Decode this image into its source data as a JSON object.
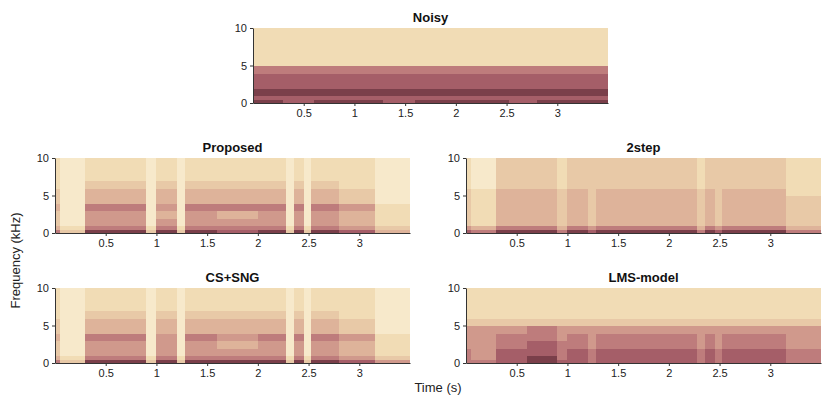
{
  "chart_data": [
    {
      "type": "heatmap",
      "title": "Noisy",
      "x_edges": [
        0,
        0.05,
        0.3,
        0.6,
        0.9,
        1.0,
        1.2,
        1.28,
        1.6,
        2.0,
        2.28,
        2.36,
        2.45,
        2.52,
        2.8,
        3.15,
        3.5
      ],
      "y_edges": [
        0,
        0.5,
        1,
        2,
        3,
        4,
        5,
        6,
        7,
        8,
        10
      ],
      "cells": [
        [
          8,
          8,
          7,
          8,
          8,
          8,
          8,
          7,
          8,
          8,
          8,
          8,
          8,
          7,
          8,
          8
        ],
        [
          7,
          7,
          7,
          7,
          7,
          7,
          7,
          7,
          7,
          7,
          7,
          7,
          7,
          7,
          7,
          7
        ],
        [
          8,
          8,
          8,
          8,
          8,
          8,
          8,
          8,
          8,
          8,
          8,
          8,
          8,
          8,
          8,
          8
        ],
        [
          7,
          7,
          7,
          7,
          7,
          7,
          7,
          7,
          7,
          7,
          7,
          7,
          7,
          7,
          7,
          7
        ],
        [
          7,
          7,
          7,
          7,
          7,
          7,
          7,
          7,
          7,
          7,
          7,
          7,
          7,
          7,
          7,
          7
        ],
        [
          6,
          6,
          6,
          6,
          6,
          6,
          6,
          6,
          6,
          6,
          6,
          6,
          6,
          6,
          6,
          6
        ],
        [
          2,
          2,
          2,
          2,
          2,
          2,
          2,
          2,
          2,
          2,
          2,
          2,
          2,
          2,
          2,
          2
        ],
        [
          2,
          2,
          2,
          2,
          2,
          2,
          2,
          2,
          2,
          2,
          2,
          2,
          2,
          2,
          2,
          2
        ],
        [
          2,
          2,
          2,
          2,
          2,
          2,
          2,
          2,
          2,
          2,
          2,
          2,
          2,
          2,
          2,
          2
        ],
        [
          2,
          2,
          2,
          2,
          2,
          2,
          2,
          2,
          2,
          2,
          2,
          2,
          2,
          2,
          2,
          2
        ]
      ],
      "clim": [
        0,
        9
      ],
      "xlim": [
        0,
        3.5
      ],
      "ylim": [
        0,
        10
      ],
      "xticks": [
        0.5,
        1,
        1.5,
        2,
        2.5,
        3
      ],
      "yticks": [
        0,
        5,
        10
      ]
    },
    {
      "type": "heatmap",
      "title": "Proposed",
      "x_edges": [
        0,
        0.05,
        0.3,
        0.6,
        0.9,
        1.0,
        1.2,
        1.28,
        1.6,
        2.0,
        2.28,
        2.36,
        2.45,
        2.52,
        2.8,
        3.15,
        3.5
      ],
      "y_edges": [
        0,
        0.5,
        1,
        2,
        3,
        4,
        5,
        6,
        7,
        8,
        10
      ],
      "cells": [
        [
          6,
          3,
          8,
          8,
          3,
          8,
          3,
          8,
          7,
          8,
          3,
          8,
          3,
          8,
          7,
          4
        ],
        [
          4,
          2,
          6,
          6,
          2,
          6,
          2,
          6,
          6,
          6,
          2,
          6,
          2,
          6,
          5,
          3
        ],
        [
          3,
          1,
          5,
          5,
          1,
          5,
          1,
          5,
          5,
          5,
          1,
          5,
          1,
          5,
          4,
          2
        ],
        [
          3,
          1,
          5,
          5,
          1,
          4,
          1,
          5,
          4,
          5,
          1,
          5,
          1,
          5,
          4,
          2
        ],
        [
          4,
          1,
          6,
          6,
          1,
          5,
          1,
          6,
          6,
          6,
          1,
          6,
          1,
          6,
          5,
          2
        ],
        [
          3,
          1,
          4,
          4,
          1,
          4,
          1,
          4,
          4,
          4,
          1,
          4,
          1,
          4,
          3,
          1
        ],
        [
          3,
          1,
          4,
          4,
          1,
          4,
          1,
          4,
          4,
          4,
          1,
          4,
          1,
          4,
          3,
          1
        ],
        [
          2,
          1,
          3,
          3,
          1,
          3,
          1,
          3,
          3,
          3,
          1,
          3,
          1,
          3,
          2,
          1
        ],
        [
          2,
          1,
          2,
          2,
          1,
          2,
          1,
          2,
          2,
          2,
          1,
          2,
          1,
          2,
          2,
          1
        ],
        [
          2,
          1,
          2,
          2,
          1,
          2,
          1,
          2,
          2,
          2,
          1,
          2,
          1,
          2,
          2,
          1
        ]
      ],
      "clim": [
        0,
        9
      ],
      "xlim": [
        0,
        3.5
      ],
      "ylim": [
        0,
        10
      ],
      "xticks": [
        0.5,
        1,
        1.5,
        2,
        2.5,
        3
      ],
      "yticks": [
        0,
        5,
        10
      ]
    },
    {
      "type": "heatmap",
      "title": "2step",
      "x_edges": [
        0,
        0.05,
        0.3,
        0.6,
        0.9,
        1.0,
        1.2,
        1.28,
        1.6,
        2.0,
        2.28,
        2.36,
        2.45,
        2.52,
        2.8,
        3.15,
        3.5
      ],
      "y_edges": [
        0,
        0.5,
        1,
        2,
        3,
        4,
        5,
        6,
        7,
        8,
        10
      ],
      "cells": [
        [
          7,
          6,
          8,
          8,
          6,
          8,
          7,
          8,
          8,
          8,
          6,
          8,
          7,
          8,
          8,
          6
        ],
        [
          5,
          4,
          6,
          6,
          4,
          6,
          5,
          6,
          6,
          6,
          4,
          6,
          5,
          6,
          6,
          4
        ],
        [
          3,
          2,
          4,
          4,
          3,
          4,
          3,
          4,
          4,
          4,
          3,
          4,
          3,
          4,
          4,
          3
        ],
        [
          3,
          2,
          4,
          4,
          3,
          4,
          3,
          4,
          4,
          4,
          3,
          4,
          3,
          4,
          4,
          3
        ],
        [
          3,
          2,
          4,
          4,
          3,
          4,
          3,
          4,
          4,
          4,
          3,
          4,
          3,
          4,
          4,
          3
        ],
        [
          3,
          2,
          4,
          4,
          3,
          4,
          3,
          4,
          4,
          4,
          3,
          4,
          3,
          4,
          4,
          3
        ],
        [
          3,
          2,
          4,
          4,
          3,
          4,
          3,
          4,
          4,
          4,
          3,
          4,
          3,
          4,
          4,
          2
        ],
        [
          2,
          1,
          3,
          3,
          2,
          3,
          3,
          3,
          3,
          3,
          2,
          3,
          3,
          3,
          3,
          2
        ],
        [
          2,
          1,
          3,
          3,
          2,
          3,
          3,
          3,
          3,
          3,
          2,
          3,
          3,
          3,
          3,
          2
        ],
        [
          2,
          1,
          3,
          3,
          2,
          3,
          3,
          3,
          3,
          3,
          2,
          3,
          3,
          3,
          3,
          2
        ]
      ],
      "clim": [
        0,
        9
      ],
      "xlim": [
        0,
        3.5
      ],
      "ylim": [
        0,
        10
      ],
      "xticks": [
        0.5,
        1,
        1.5,
        2,
        2.5,
        3
      ],
      "yticks": [
        0,
        5,
        10
      ]
    },
    {
      "type": "heatmap",
      "title": "CS+SNG",
      "x_edges": [
        0,
        0.05,
        0.3,
        0.6,
        0.9,
        1.0,
        1.2,
        1.28,
        1.6,
        2.0,
        2.28,
        2.36,
        2.45,
        2.52,
        2.8,
        3.15,
        3.5
      ],
      "y_edges": [
        0,
        0.5,
        1,
        2,
        3,
        4,
        5,
        6,
        7,
        8,
        10
      ],
      "cells": [
        [
          6,
          3,
          8,
          8,
          3,
          8,
          3,
          8,
          8,
          8,
          3,
          8,
          3,
          8,
          7,
          5
        ],
        [
          4,
          2,
          6,
          6,
          2,
          6,
          2,
          6,
          6,
          6,
          2,
          6,
          2,
          6,
          5,
          3
        ],
        [
          3,
          1,
          5,
          5,
          1,
          5,
          1,
          5,
          5,
          5,
          1,
          5,
          1,
          5,
          4,
          2
        ],
        [
          3,
          1,
          5,
          5,
          1,
          5,
          1,
          5,
          4,
          5,
          1,
          5,
          1,
          5,
          4,
          2
        ],
        [
          4,
          1,
          6,
          6,
          1,
          5,
          1,
          6,
          5,
          6,
          1,
          6,
          1,
          6,
          5,
          2
        ],
        [
          3,
          1,
          4,
          4,
          1,
          4,
          1,
          4,
          4,
          4,
          1,
          4,
          1,
          4,
          3,
          1
        ],
        [
          3,
          1,
          4,
          4,
          1,
          4,
          1,
          4,
          4,
          4,
          1,
          4,
          1,
          4,
          3,
          1
        ],
        [
          2,
          1,
          3,
          3,
          1,
          3,
          1,
          3,
          3,
          3,
          1,
          3,
          1,
          3,
          2,
          1
        ],
        [
          2,
          1,
          2,
          2,
          1,
          2,
          1,
          2,
          2,
          2,
          1,
          2,
          1,
          2,
          2,
          1
        ],
        [
          2,
          1,
          2,
          2,
          1,
          2,
          1,
          2,
          2,
          2,
          1,
          2,
          1,
          2,
          2,
          1
        ]
      ],
      "clim": [
        0,
        9
      ],
      "xlim": [
        0,
        3.5
      ],
      "ylim": [
        0,
        10
      ],
      "xticks": [
        0.5,
        1,
        1.5,
        2,
        2.5,
        3
      ],
      "yticks": [
        0,
        5,
        10
      ]
    },
    {
      "type": "heatmap",
      "title": "LMS-model",
      "x_edges": [
        0,
        0.05,
        0.3,
        0.6,
        0.9,
        1.0,
        1.2,
        1.28,
        1.6,
        2.0,
        2.28,
        2.36,
        2.45,
        2.52,
        2.8,
        3.15,
        3.5
      ],
      "y_edges": [
        0,
        0.5,
        1,
        2,
        3,
        4,
        5,
        6,
        7,
        8,
        10
      ],
      "cells": [
        [
          6,
          6,
          7,
          8,
          7,
          7,
          6,
          7,
          7,
          7,
          6,
          7,
          6,
          7,
          7,
          6
        ],
        [
          6,
          5,
          7,
          8,
          6,
          7,
          6,
          7,
          7,
          7,
          6,
          7,
          6,
          7,
          7,
          6
        ],
        [
          6,
          5,
          7,
          7,
          6,
          7,
          6,
          7,
          7,
          7,
          6,
          7,
          6,
          7,
          7,
          6
        ],
        [
          5,
          5,
          6,
          7,
          6,
          6,
          5,
          6,
          6,
          6,
          5,
          6,
          5,
          6,
          6,
          5
        ],
        [
          5,
          5,
          6,
          6,
          5,
          6,
          5,
          6,
          6,
          6,
          5,
          6,
          5,
          6,
          6,
          5
        ],
        [
          5,
          5,
          5,
          6,
          5,
          5,
          5,
          5,
          5,
          5,
          5,
          5,
          5,
          5,
          5,
          5
        ],
        [
          3,
          3,
          3,
          3,
          3,
          3,
          3,
          3,
          3,
          3,
          3,
          3,
          3,
          3,
          3,
          3
        ],
        [
          2,
          2,
          2,
          2,
          2,
          2,
          2,
          2,
          2,
          2,
          2,
          2,
          2,
          2,
          2,
          2
        ],
        [
          2,
          2,
          2,
          2,
          2,
          2,
          2,
          2,
          2,
          2,
          2,
          2,
          2,
          2,
          2,
          2
        ],
        [
          2,
          2,
          2,
          2,
          2,
          2,
          2,
          2,
          2,
          2,
          2,
          2,
          2,
          2,
          2,
          2
        ]
      ],
      "clim": [
        0,
        9
      ],
      "xlim": [
        0,
        3.5
      ],
      "ylim": [
        0,
        10
      ],
      "xticks": [
        0.5,
        1,
        1.5,
        2,
        2.5,
        3
      ],
      "yticks": [
        0,
        5,
        10
      ]
    }
  ],
  "xlabel": "Time (s)",
  "ylabel": "Frequency (kHz)"
}
